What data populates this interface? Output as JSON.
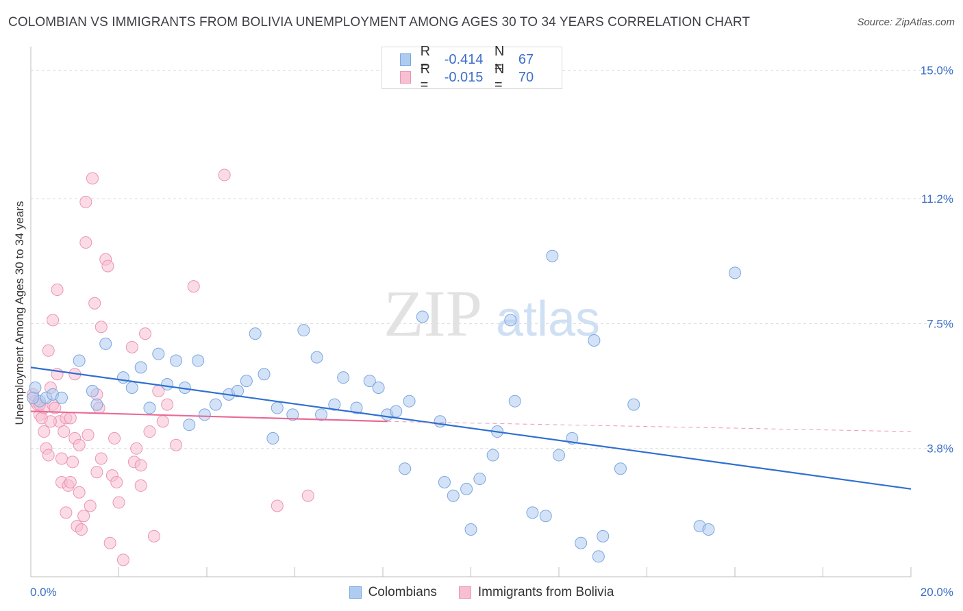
{
  "title": "COLOMBIAN VS IMMIGRANTS FROM BOLIVIA UNEMPLOYMENT AMONG AGES 30 TO 34 YEARS CORRELATION CHART",
  "source": "Source: ZipAtlas.com",
  "watermark": {
    "zip": "ZIP",
    "atlas": "atlas"
  },
  "colors": {
    "blue_fill": "#aecbf0",
    "blue_stroke": "#7aa7e0",
    "blue_line": "#2f6fd1",
    "pink_fill": "#f7bfd2",
    "pink_stroke": "#ec94b3",
    "pink_line": "#e86b95",
    "axis_label": "#3b6fc9",
    "grid": "#dcdcdc"
  },
  "legend": [
    {
      "r_label": "R =",
      "r_value": "-0.414",
      "n_label": "N =",
      "n_value": "67"
    },
    {
      "r_label": "R =",
      "r_value": "-0.015",
      "n_label": "N =",
      "n_value": "70"
    }
  ],
  "bottom_legend": [
    "Colombians",
    "Immigrants from Bolivia"
  ],
  "chart_data": {
    "type": "scatter",
    "xlabel": "",
    "ylabel": "Unemployment Among Ages 30 to 34 years",
    "xlim": [
      0,
      20
    ],
    "ylim": [
      0,
      15.5
    ],
    "x_tick_labels": [
      "0.0%",
      "20.0%"
    ],
    "y_ticks": [
      3.8,
      7.5,
      11.2,
      15.0
    ],
    "y_tick_labels": [
      "3.8%",
      "7.5%",
      "11.2%",
      "15.0%"
    ],
    "grid": true,
    "legend_position": "top-center",
    "series": [
      {
        "name": "Colombians",
        "color": "#aecbf0",
        "trend": {
          "x": [
            0,
            20
          ],
          "y": [
            6.2,
            2.6
          ]
        },
        "points": [
          [
            0.1,
            5.6
          ],
          [
            0.2,
            5.2
          ],
          [
            0.35,
            5.3
          ],
          [
            0.5,
            5.4
          ],
          [
            0.7,
            5.3
          ],
          [
            1.1,
            6.4
          ],
          [
            1.4,
            5.5
          ],
          [
            1.5,
            5.1
          ],
          [
            1.7,
            6.9
          ],
          [
            2.1,
            5.9
          ],
          [
            2.3,
            5.6
          ],
          [
            2.5,
            6.2
          ],
          [
            2.7,
            5.0
          ],
          [
            2.9,
            6.6
          ],
          [
            3.1,
            5.7
          ],
          [
            3.3,
            6.4
          ],
          [
            3.5,
            5.6
          ],
          [
            3.6,
            4.5
          ],
          [
            3.8,
            6.4
          ],
          [
            3.95,
            4.8
          ],
          [
            4.2,
            5.1
          ],
          [
            4.5,
            5.4
          ],
          [
            4.7,
            5.5
          ],
          [
            4.9,
            5.8
          ],
          [
            5.1,
            7.2
          ],
          [
            5.3,
            6.0
          ],
          [
            5.5,
            4.1
          ],
          [
            5.6,
            5.0
          ],
          [
            5.95,
            4.8
          ],
          [
            6.2,
            7.3
          ],
          [
            6.5,
            6.5
          ],
          [
            6.6,
            4.8
          ],
          [
            6.9,
            5.1
          ],
          [
            7.1,
            5.9
          ],
          [
            7.4,
            5.0
          ],
          [
            7.7,
            5.8
          ],
          [
            7.9,
            5.6
          ],
          [
            8.1,
            4.8
          ],
          [
            8.3,
            4.9
          ],
          [
            8.5,
            3.2
          ],
          [
            8.6,
            5.2
          ],
          [
            8.9,
            7.7
          ],
          [
            9.3,
            4.6
          ],
          [
            9.4,
            2.8
          ],
          [
            9.6,
            2.4
          ],
          [
            9.9,
            2.6
          ],
          [
            10.0,
            1.4
          ],
          [
            10.2,
            2.9
          ],
          [
            10.5,
            3.6
          ],
          [
            10.6,
            4.3
          ],
          [
            10.9,
            7.6
          ],
          [
            11.0,
            5.2
          ],
          [
            11.4,
            1.9
          ],
          [
            11.7,
            1.8
          ],
          [
            11.85,
            9.5
          ],
          [
            12.0,
            3.6
          ],
          [
            12.3,
            4.1
          ],
          [
            12.5,
            1.0
          ],
          [
            12.8,
            7.0
          ],
          [
            12.9,
            0.6
          ],
          [
            13.0,
            1.2
          ],
          [
            13.4,
            3.2
          ],
          [
            13.7,
            5.1
          ],
          [
            15.2,
            1.5
          ],
          [
            15.4,
            1.4
          ],
          [
            16.0,
            9.0
          ],
          [
            0.05,
            5.3
          ]
        ]
      },
      {
        "name": "Immigrants from Bolivia",
        "color": "#f7bfd2",
        "trend": {
          "x": [
            0,
            8.1
          ],
          "y": [
            4.9,
            4.6
          ]
        },
        "trend_dashed": {
          "x": [
            8.1,
            20
          ],
          "y": [
            4.6,
            4.3
          ]
        },
        "points": [
          [
            0.05,
            5.4
          ],
          [
            0.1,
            5.2
          ],
          [
            0.15,
            5.1
          ],
          [
            0.2,
            4.8
          ],
          [
            0.25,
            4.7
          ],
          [
            0.3,
            5.0
          ],
          [
            0.3,
            4.3
          ],
          [
            0.35,
            3.8
          ],
          [
            0.4,
            3.6
          ],
          [
            0.4,
            6.7
          ],
          [
            0.45,
            5.6
          ],
          [
            0.5,
            5.1
          ],
          [
            0.55,
            5.0
          ],
          [
            0.5,
            7.6
          ],
          [
            0.6,
            6.0
          ],
          [
            0.6,
            8.5
          ],
          [
            0.65,
            4.6
          ],
          [
            0.7,
            3.5
          ],
          [
            0.7,
            2.8
          ],
          [
            0.75,
            4.3
          ],
          [
            0.8,
            4.7
          ],
          [
            0.8,
            1.9
          ],
          [
            0.85,
            2.7
          ],
          [
            0.9,
            4.7
          ],
          [
            0.9,
            2.8
          ],
          [
            0.95,
            3.4
          ],
          [
            1.0,
            6.0
          ],
          [
            1.0,
            4.1
          ],
          [
            1.05,
            1.5
          ],
          [
            1.1,
            3.9
          ],
          [
            1.1,
            2.5
          ],
          [
            1.15,
            1.4
          ],
          [
            1.2,
            1.8
          ],
          [
            1.25,
            11.1
          ],
          [
            1.25,
            9.9
          ],
          [
            1.3,
            4.2
          ],
          [
            1.35,
            2.1
          ],
          [
            1.4,
            11.8
          ],
          [
            1.45,
            8.1
          ],
          [
            1.5,
            5.4
          ],
          [
            1.55,
            5.0
          ],
          [
            1.6,
            7.4
          ],
          [
            1.6,
            3.5
          ],
          [
            1.7,
            9.4
          ],
          [
            1.75,
            9.2
          ],
          [
            1.8,
            1.0
          ],
          [
            1.85,
            3.0
          ],
          [
            1.9,
            4.1
          ],
          [
            1.95,
            2.8
          ],
          [
            2.0,
            2.2
          ],
          [
            2.1,
            0.5
          ],
          [
            2.3,
            6.8
          ],
          [
            2.35,
            3.4
          ],
          [
            2.4,
            3.8
          ],
          [
            2.5,
            2.7
          ],
          [
            2.5,
            3.3
          ],
          [
            2.6,
            7.2
          ],
          [
            2.7,
            4.3
          ],
          [
            2.8,
            1.2
          ],
          [
            2.9,
            5.5
          ],
          [
            3.0,
            4.6
          ],
          [
            3.1,
            5.1
          ],
          [
            3.3,
            3.9
          ],
          [
            3.7,
            8.6
          ],
          [
            4.4,
            11.9
          ],
          [
            5.6,
            2.1
          ],
          [
            6.3,
            2.4
          ],
          [
            1.5,
            3.1
          ],
          [
            0.45,
            4.6
          ],
          [
            0.2,
            5.1
          ]
        ]
      }
    ]
  }
}
